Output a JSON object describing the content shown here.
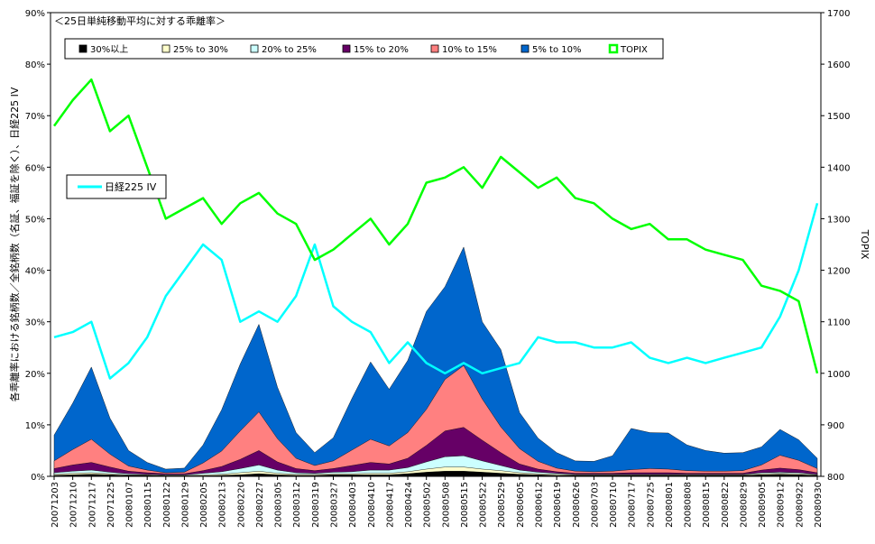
{
  "chart_data": {
    "type": "area",
    "title": "＜25日単純移動平均に対する乖離率＞",
    "ylabel_left": "各乖離率における銘柄数／全銘柄数（名証、福証を除く）、日経225 IV",
    "ylabel_right": "TOPIX",
    "left_axis": {
      "min": 0,
      "max": 90,
      "ticks": [
        0,
        10,
        20,
        30,
        40,
        50,
        60,
        70,
        80,
        90
      ],
      "unit": "%"
    },
    "right_axis": {
      "min": 800,
      "max": 1700,
      "ticks": [
        800,
        900,
        1000,
        1100,
        1200,
        1300,
        1400,
        1500,
        1600,
        1700
      ]
    },
    "x_tick_labels": [
      "20071203",
      "20071210",
      "20071217",
      "20071225",
      "20080107",
      "20080115",
      "20080122",
      "20080129",
      "20080205",
      "20080213",
      "20080220",
      "20080227",
      "20080305",
      "20080312",
      "20080319",
      "20080327",
      "20080403",
      "20080410",
      "20080417",
      "20080424",
      "20080502",
      "20080508",
      "20080515",
      "20080522",
      "20080529",
      "20080605",
      "20080612",
      "20080619",
      "20080626",
      "20080703",
      "20080710",
      "20080717",
      "20080725",
      "20080801",
      "20080808",
      "20080815",
      "20080822",
      "20080829",
      "20080905",
      "20080912",
      "20080922",
      "20080930"
    ],
    "legend": [
      {
        "name": "30%以上",
        "color": "#000000"
      },
      {
        "name": "25% to 30%",
        "color": "#ffffcc"
      },
      {
        "name": "20% to 25%",
        "color": "#ccffff"
      },
      {
        "name": "15% to 20%",
        "color": "#660066"
      },
      {
        "name": "10% to 15%",
        "color": "#ff8080"
      },
      {
        "name": "5% to 10%",
        "color": "#0066cc"
      },
      {
        "name": "TOPIX",
        "color": "#00ff00"
      }
    ],
    "inline_legend": {
      "name": "日経225 IV",
      "color": "#00ffff"
    },
    "series": [
      {
        "name": "30%以上",
        "color": "#000000",
        "values": [
          0.2,
          0.3,
          0.4,
          0.3,
          0.2,
          0.2,
          0.1,
          0.1,
          0.1,
          0.2,
          0.3,
          0.5,
          0.3,
          0.2,
          0.2,
          0.3,
          0.3,
          0.3,
          0.3,
          0.5,
          0.8,
          1.0,
          1.0,
          0.8,
          0.6,
          0.4,
          0.3,
          0.2,
          0.2,
          0.2,
          0.2,
          0.2,
          0.2,
          0.2,
          0.2,
          0.2,
          0.2,
          0.2,
          0.3,
          0.4,
          0.3,
          0.2
        ]
      },
      {
        "name": "25% to 30%",
        "color": "#ffffcc",
        "values": [
          0.2,
          0.3,
          0.3,
          0.2,
          0.1,
          0.1,
          0.1,
          0.1,
          0.2,
          0.2,
          0.4,
          0.5,
          0.3,
          0.2,
          0.2,
          0.2,
          0.2,
          0.3,
          0.3,
          0.4,
          0.6,
          0.8,
          0.8,
          0.6,
          0.5,
          0.3,
          0.2,
          0.2,
          0.1,
          0.1,
          0.1,
          0.1,
          0.1,
          0.1,
          0.1,
          0.1,
          0.1,
          0.1,
          0.2,
          0.2,
          0.2,
          0.1
        ]
      },
      {
        "name": "20% to 25%",
        "color": "#ccffff",
        "values": [
          0.3,
          0.4,
          0.5,
          0.3,
          0.2,
          0.1,
          0.1,
          0.1,
          0.3,
          0.5,
          0.8,
          1.2,
          0.6,
          0.3,
          0.2,
          0.3,
          0.4,
          0.6,
          0.6,
          0.8,
          1.4,
          2.0,
          2.2,
          1.6,
          1.0,
          0.5,
          0.3,
          0.2,
          0.1,
          0.1,
          0.1,
          0.1,
          0.1,
          0.1,
          0.1,
          0.1,
          0.1,
          0.1,
          0.2,
          0.2,
          0.2,
          0.1
        ]
      },
      {
        "name": "15% to 20%",
        "color": "#660066",
        "values": [
          0.8,
          1.2,
          1.5,
          1.0,
          0.5,
          0.3,
          0.2,
          0.2,
          0.5,
          1.0,
          1.8,
          2.8,
          1.6,
          0.8,
          0.5,
          0.7,
          1.2,
          1.5,
          1.2,
          1.8,
          3.2,
          5.0,
          5.5,
          4.0,
          2.5,
          1.2,
          0.6,
          0.3,
          0.2,
          0.2,
          0.2,
          0.3,
          0.3,
          0.3,
          0.2,
          0.2,
          0.2,
          0.2,
          0.5,
          0.8,
          0.6,
          0.3
        ]
      },
      {
        "name": "10% to 15%",
        "color": "#ff8080",
        "values": [
          1.5,
          3.0,
          4.5,
          2.5,
          1.0,
          0.5,
          0.2,
          0.3,
          1.5,
          3.0,
          5.5,
          7.5,
          4.5,
          2.0,
          1.0,
          1.5,
          3.0,
          4.5,
          3.5,
          5.0,
          7.0,
          10.0,
          12.0,
          8.0,
          5.0,
          3.0,
          1.5,
          0.7,
          0.4,
          0.3,
          0.4,
          0.6,
          0.8,
          0.7,
          0.5,
          0.4,
          0.4,
          0.5,
          1.0,
          2.5,
          1.8,
          0.8
        ]
      },
      {
        "name": "5% to 10%",
        "color": "#0066cc",
        "values": [
          5.0,
          9.0,
          14.0,
          7.0,
          3.0,
          1.5,
          0.7,
          0.8,
          3.5,
          8.0,
          13.0,
          17.0,
          10.0,
          5.0,
          2.5,
          4.5,
          10.0,
          15.0,
          11.0,
          14.0,
          19.0,
          18.0,
          23.0,
          15.0,
          15.0,
          7.0,
          4.5,
          3.0,
          2.0,
          2.0,
          3.0,
          8.0,
          7.0,
          7.0,
          5.0,
          4.0,
          3.5,
          3.5,
          3.5,
          5.0,
          4.0,
          2.0
        ]
      }
    ],
    "topix": [
      1480,
      1530,
      1570,
      1470,
      1500,
      1400,
      1300,
      1320,
      1340,
      1290,
      1330,
      1350,
      1310,
      1290,
      1220,
      1240,
      1270,
      1300,
      1250,
      1290,
      1370,
      1380,
      1400,
      1360,
      1420,
      1390,
      1360,
      1380,
      1340,
      1330,
      1300,
      1280,
      1290,
      1260,
      1260,
      1240,
      1230,
      1220,
      1170,
      1160,
      1140,
      1000
    ],
    "nikkei_iv": [
      27,
      28,
      30,
      19,
      22,
      27,
      35,
      40,
      45,
      42,
      30,
      32,
      30,
      35,
      45,
      33,
      30,
      28,
      22,
      26,
      22,
      20,
      22,
      20,
      21,
      22,
      27,
      26,
      26,
      25,
      25,
      26,
      23,
      22,
      23,
      22,
      23,
      24,
      25,
      31,
      40,
      53
    ]
  }
}
